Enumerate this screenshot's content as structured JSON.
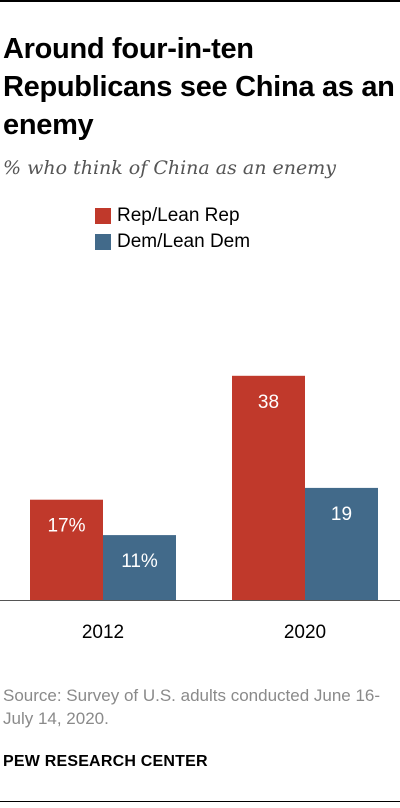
{
  "title": "Around four-in-ten Republicans see China as an enemy",
  "subtitle": "% who think of China as an enemy",
  "source": "Source: Survey of U.S. adults conducted June 16-July 14, 2020.",
  "brand": "PEW RESEARCH CENTER",
  "colors": {
    "rep": "#c0392b",
    "dem": "#426a8a"
  },
  "chart_data": {
    "type": "bar",
    "categories": [
      "2012",
      "2020"
    ],
    "series": [
      {
        "name": "Rep/Lean Rep",
        "values": [
          17,
          38
        ],
        "labels": [
          "17%",
          "38"
        ],
        "color": "#c0392b"
      },
      {
        "name": "Dem/Lean Dem",
        "values": [
          11,
          19
        ],
        "labels": [
          "11%",
          "19"
        ],
        "color": "#426a8a"
      }
    ],
    "title": "Around four-in-ten Republicans see China as an enemy",
    "subtitle": "% who think of China as an enemy",
    "ylim": [
      0,
      40
    ],
    "grid": false,
    "legend": "top-left"
  }
}
